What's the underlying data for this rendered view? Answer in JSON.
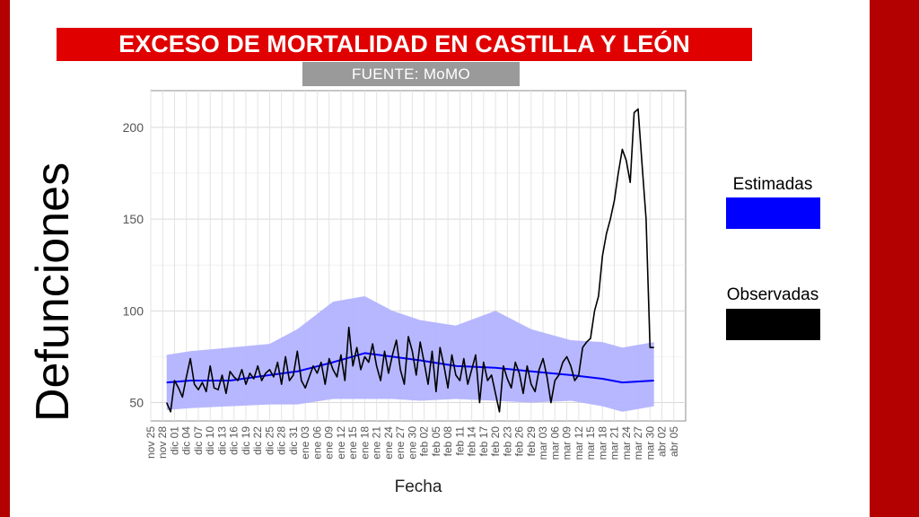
{
  "chart_data": {
    "type": "line",
    "title": "EXCESO DE MORTALIDAD EN CASTILLA Y LEÓN",
    "subtitle": "FUENTE: MoMO",
    "xlabel": "Fecha",
    "ylabel": "Defunciones",
    "ylim": [
      40,
      220
    ],
    "yticks": [
      50,
      100,
      150,
      200
    ],
    "grid": true,
    "legend_position": "right",
    "x_range": [
      "2019-11-25",
      "2020-04-08"
    ],
    "xticks": [
      {
        "date": "2019-11-25",
        "label": "nov 25"
      },
      {
        "date": "2019-11-28",
        "label": "nov 28"
      },
      {
        "date": "2019-12-01",
        "label": "dic 01"
      },
      {
        "date": "2019-12-04",
        "label": "dic 04"
      },
      {
        "date": "2019-12-07",
        "label": "dic 07"
      },
      {
        "date": "2019-12-10",
        "label": "dic 10"
      },
      {
        "date": "2019-12-13",
        "label": "dic 13"
      },
      {
        "date": "2019-12-16",
        "label": "dic 16"
      },
      {
        "date": "2019-12-19",
        "label": "dic 19"
      },
      {
        "date": "2019-12-22",
        "label": "dic 22"
      },
      {
        "date": "2019-12-25",
        "label": "dic 25"
      },
      {
        "date": "2019-12-28",
        "label": "dic 28"
      },
      {
        "date": "2019-12-31",
        "label": "dic 31"
      },
      {
        "date": "2020-01-03",
        "label": "ene 03"
      },
      {
        "date": "2020-01-06",
        "label": "ene 06"
      },
      {
        "date": "2020-01-09",
        "label": "ene 09"
      },
      {
        "date": "2020-01-12",
        "label": "ene 12"
      },
      {
        "date": "2020-01-15",
        "label": "ene 15"
      },
      {
        "date": "2020-01-18",
        "label": "ene 18"
      },
      {
        "date": "2020-01-21",
        "label": "ene 21"
      },
      {
        "date": "2020-01-24",
        "label": "ene 24"
      },
      {
        "date": "2020-01-27",
        "label": "ene 27"
      },
      {
        "date": "2020-01-30",
        "label": "ene 30"
      },
      {
        "date": "2020-02-02",
        "label": "feb 02"
      },
      {
        "date": "2020-02-05",
        "label": "feb 05"
      },
      {
        "date": "2020-02-08",
        "label": "feb 08"
      },
      {
        "date": "2020-02-11",
        "label": "feb 11"
      },
      {
        "date": "2020-02-14",
        "label": "feb 14"
      },
      {
        "date": "2020-02-17",
        "label": "feb 17"
      },
      {
        "date": "2020-02-20",
        "label": "feb 20"
      },
      {
        "date": "2020-02-23",
        "label": "feb 23"
      },
      {
        "date": "2020-02-26",
        "label": "feb 26"
      },
      {
        "date": "2020-02-29",
        "label": "feb 29"
      },
      {
        "date": "2020-03-03",
        "label": "mar 03"
      },
      {
        "date": "2020-03-06",
        "label": "mar 06"
      },
      {
        "date": "2020-03-09",
        "label": "mar 09"
      },
      {
        "date": "2020-03-12",
        "label": "mar 12"
      },
      {
        "date": "2020-03-15",
        "label": "mar 15"
      },
      {
        "date": "2020-03-18",
        "label": "mar 18"
      },
      {
        "date": "2020-03-21",
        "label": "mar 21"
      },
      {
        "date": "2020-03-24",
        "label": "mar 24"
      },
      {
        "date": "2020-03-27",
        "label": "mar 27"
      },
      {
        "date": "2020-03-30",
        "label": "mar 30"
      },
      {
        "date": "2020-04-02",
        "label": "abr 02"
      },
      {
        "date": "2020-04-05",
        "label": "abr 05"
      }
    ],
    "series": [
      {
        "name": "Estimadas",
        "color": "#0000ff",
        "band_color": "#b3b3ff",
        "x": [
          "2019-11-29",
          "2019-12-05",
          "2019-12-15",
          "2019-12-25",
          "2020-01-01",
          "2020-01-10",
          "2020-01-18",
          "2020-01-25",
          "2020-02-01",
          "2020-02-10",
          "2020-02-20",
          "2020-02-29",
          "2020-03-10",
          "2020-03-18",
          "2020-03-23",
          "2020-03-31"
        ],
        "values": [
          61,
          62,
          62,
          65,
          67,
          72,
          77,
          75,
          73,
          70,
          69,
          67,
          65,
          63,
          61,
          62
        ],
        "lower": [
          46,
          47,
          48,
          49,
          49,
          52,
          52,
          52,
          51,
          52,
          51,
          50,
          51,
          48,
          45,
          48
        ],
        "upper": [
          76,
          78,
          80,
          82,
          90,
          105,
          108,
          100,
          95,
          92,
          100,
          90,
          84,
          83,
          80,
          83
        ]
      },
      {
        "name": "Observadas",
        "color": "#000000",
        "x": [
          "2019-11-29",
          "2019-11-30",
          "2019-12-01",
          "2019-12-02",
          "2019-12-03",
          "2019-12-04",
          "2019-12-05",
          "2019-12-06",
          "2019-12-07",
          "2019-12-08",
          "2019-12-09",
          "2019-12-10",
          "2019-12-11",
          "2019-12-12",
          "2019-12-13",
          "2019-12-14",
          "2019-12-15",
          "2019-12-16",
          "2019-12-17",
          "2019-12-18",
          "2019-12-19",
          "2019-12-20",
          "2019-12-21",
          "2019-12-22",
          "2019-12-23",
          "2019-12-24",
          "2019-12-25",
          "2019-12-26",
          "2019-12-27",
          "2019-12-28",
          "2019-12-29",
          "2019-12-30",
          "2019-12-31",
          "2020-01-01",
          "2020-01-02",
          "2020-01-03",
          "2020-01-04",
          "2020-01-05",
          "2020-01-06",
          "2020-01-07",
          "2020-01-08",
          "2020-01-09",
          "2020-01-10",
          "2020-01-11",
          "2020-01-12",
          "2020-01-13",
          "2020-01-14",
          "2020-01-15",
          "2020-01-16",
          "2020-01-17",
          "2020-01-18",
          "2020-01-19",
          "2020-01-20",
          "2020-01-21",
          "2020-01-22",
          "2020-01-23",
          "2020-01-24",
          "2020-01-25",
          "2020-01-26",
          "2020-01-27",
          "2020-01-28",
          "2020-01-29",
          "2020-01-30",
          "2020-01-31",
          "2020-02-01",
          "2020-02-02",
          "2020-02-03",
          "2020-02-04",
          "2020-02-05",
          "2020-02-06",
          "2020-02-07",
          "2020-02-08",
          "2020-02-09",
          "2020-02-10",
          "2020-02-11",
          "2020-02-12",
          "2020-02-13",
          "2020-02-14",
          "2020-02-15",
          "2020-02-16",
          "2020-02-17",
          "2020-02-18",
          "2020-02-19",
          "2020-02-20",
          "2020-02-21",
          "2020-02-22",
          "2020-02-23",
          "2020-02-24",
          "2020-02-25",
          "2020-02-26",
          "2020-02-27",
          "2020-02-28",
          "2020-02-29",
          "2020-03-01",
          "2020-03-02",
          "2020-03-03",
          "2020-03-04",
          "2020-03-05",
          "2020-03-06",
          "2020-03-07",
          "2020-03-08",
          "2020-03-09",
          "2020-03-10",
          "2020-03-11",
          "2020-03-12",
          "2020-03-13",
          "2020-03-14",
          "2020-03-15",
          "2020-03-16",
          "2020-03-17",
          "2020-03-18",
          "2020-03-19",
          "2020-03-20",
          "2020-03-21",
          "2020-03-22",
          "2020-03-23",
          "2020-03-24",
          "2020-03-25",
          "2020-03-26",
          "2020-03-27",
          "2020-03-28",
          "2020-03-29",
          "2020-03-30",
          "2020-03-31"
        ],
        "values": [
          50,
          45,
          62,
          58,
          53,
          64,
          74,
          60,
          57,
          61,
          56,
          70,
          58,
          57,
          65,
          55,
          67,
          64,
          62,
          68,
          60,
          66,
          63,
          70,
          62,
          66,
          68,
          64,
          72,
          60,
          75,
          62,
          65,
          78,
          62,
          58,
          64,
          70,
          66,
          72,
          60,
          74,
          68,
          64,
          76,
          62,
          91,
          70,
          80,
          68,
          75,
          72,
          82,
          70,
          62,
          78,
          66,
          76,
          84,
          68,
          60,
          86,
          78,
          65,
          83,
          72,
          60,
          78,
          56,
          80,
          70,
          58,
          76,
          65,
          62,
          74,
          60,
          68,
          76,
          50,
          72,
          62,
          65,
          55,
          45,
          70,
          63,
          58,
          72,
          66,
          55,
          70,
          60,
          56,
          68,
          74,
          64,
          50,
          62,
          65,
          72,
          75,
          70,
          62,
          65,
          80,
          83,
          85,
          100,
          108,
          130,
          142,
          150,
          160,
          175,
          188,
          182,
          170,
          208,
          210,
          180,
          150,
          80,
          80
        ]
      }
    ]
  },
  "legend": {
    "estimadas_label": "Estimadas",
    "observadas_label": "Observadas"
  }
}
